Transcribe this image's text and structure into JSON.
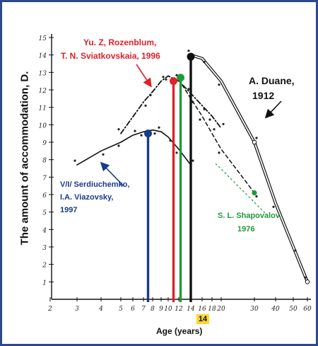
{
  "chart_data": {
    "type": "line",
    "xlabel": "Age (years)",
    "ylabel": "The amount of accommodation, D.",
    "highlight_x": "14",
    "xticks": [
      "2",
      "3",
      "4",
      "5",
      "6",
      "7",
      "8",
      "9",
      "10",
      "12",
      "14",
      "16",
      "18",
      "20",
      "30",
      "40",
      "50",
      "60"
    ],
    "yticks": [
      "1",
      "2",
      "3",
      "4",
      "5",
      "6",
      "7",
      "8",
      "9",
      "10",
      "11",
      "12",
      "13",
      "14",
      "15"
    ],
    "ylim": [
      0,
      15
    ],
    "series": [
      {
        "label": "A. Duane,",
        "label2": "1912",
        "color": "#111111",
        "style": "double",
        "points": [
          [
            14,
            14
          ],
          [
            16,
            13.8
          ],
          [
            20,
            12.5
          ],
          [
            30,
            9
          ],
          [
            40,
            5.5
          ],
          [
            50,
            3
          ],
          [
            60,
            1
          ]
        ]
      },
      {
        "label": "Yu. Z, Rozenblum,",
        "label2": "T. N. Sviatkovskaia, 1996",
        "color": "#111111",
        "style": "dashdot",
        "points": [
          [
            5,
            9.5
          ],
          [
            7,
            11.3
          ],
          [
            8,
            11.9
          ],
          [
            9,
            12.5
          ],
          [
            10,
            12.8
          ],
          [
            12,
            12.5
          ],
          [
            14,
            11.8
          ],
          [
            16,
            11.1
          ],
          [
            18,
            10.5
          ],
          [
            20,
            9.8
          ]
        ]
      },
      {
        "label": "V/I/ Serdiuchemko,",
        "label2": "I.A. Viazovsky,",
        "label3": "1997",
        "color": "#111111",
        "style": "solid",
        "points": [
          [
            3,
            7.7
          ],
          [
            4,
            8.5
          ],
          [
            5,
            9
          ],
          [
            6,
            9.4
          ],
          [
            7,
            9.6
          ],
          [
            8,
            9.7
          ],
          [
            9,
            9.6
          ],
          [
            10,
            9.3
          ],
          [
            12,
            8.6
          ],
          [
            14,
            7.7
          ]
        ]
      },
      {
        "label": "S. L. Shapovalov,",
        "label2": "1976",
        "color": "#111111",
        "style": "dashed",
        "points": [
          [
            12,
            12.6
          ],
          [
            14,
            11.5
          ],
          [
            16,
            10.5
          ],
          [
            18,
            9.5
          ],
          [
            20,
            8.6
          ],
          [
            30,
            6.1
          ]
        ]
      }
    ],
    "markers": [
      {
        "x": 7.5,
        "y": 9.5,
        "color": "#1a3a8c"
      },
      {
        "x": 11,
        "y": 12.5,
        "color": "#e0202a"
      },
      {
        "x": 12.3,
        "y": 12.7,
        "color": "#1f9a3a"
      },
      {
        "x": 14,
        "y": 13.9,
        "color": "#111111"
      }
    ],
    "grid": false
  }
}
